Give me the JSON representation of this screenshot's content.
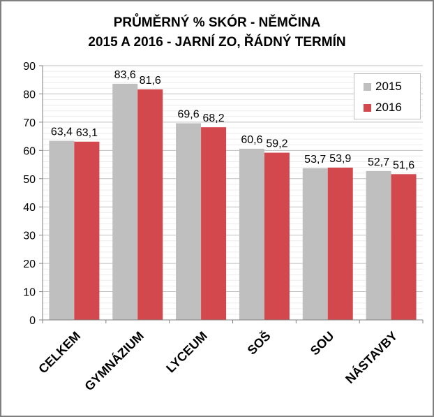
{
  "chart_data": {
    "type": "bar",
    "title": "PRŮMĚRNÝ % SKÓR - NĚMČINA",
    "subtitle": "2015 A 2016 - JARNÍ ZO, ŘÁDNÝ TERMÍN",
    "categories": [
      "CELKEM",
      "GYMNÁZIUM",
      "LYCEUM",
      "SOŠ",
      "SOU",
      "NÁSTAVBY"
    ],
    "series": [
      {
        "name": "2015",
        "color": "#bfbfbf",
        "values": [
          63.4,
          83.6,
          69.6,
          60.6,
          53.7,
          52.7
        ],
        "labels": [
          "63,4",
          "83,6",
          "69,6",
          "60,6",
          "53,7",
          "52,7"
        ]
      },
      {
        "name": "2016",
        "color": "#d2484d",
        "values": [
          63.1,
          81.6,
          68.2,
          59.2,
          53.9,
          51.6
        ],
        "labels": [
          "63,1",
          "81,6",
          "68,2",
          "59,2",
          "53,9",
          "51,6"
        ]
      }
    ],
    "ylim": [
      0,
      90
    ],
    "yticks": [
      0,
      10,
      20,
      30,
      40,
      50,
      60,
      70,
      80,
      90
    ],
    "xlabel": "",
    "ylabel": "",
    "grid": true,
    "legend_position": "top-right"
  }
}
